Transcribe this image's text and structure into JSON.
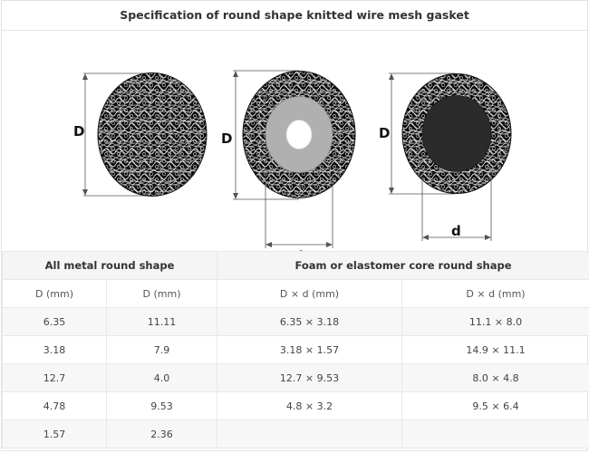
{
  "title": "Specification of round shape knitted wire mesh gasket",
  "figure": {
    "labels": {
      "gasket1_D": "D",
      "gasket2_D": "D",
      "gasket2_d": "d",
      "gasket3_D": "D",
      "gasket3_d": "d"
    },
    "colors": {
      "mesh": "#111111",
      "foam_core": "#b0b0b0",
      "elastomer_core": "#2b2b2b",
      "dimension_lines": "#444444"
    }
  },
  "table": {
    "groups": [
      "All metal round shape",
      "Foam or elastomer core round shape"
    ],
    "subheaders": [
      "D (mm)",
      "D (mm)",
      "D × d (mm)",
      "D × d (mm)"
    ],
    "rows": [
      [
        "6.35",
        "11.11",
        "6.35 × 3.18",
        "11.1 × 8.0"
      ],
      [
        "3.18",
        "7.9",
        "3.18 × 1.57",
        "14.9 × 11.1"
      ],
      [
        "12.7",
        "4.0",
        "12.7 × 9.53",
        "8.0 × 4.8"
      ],
      [
        "4.78",
        "9.53",
        "4.8 × 3.2",
        "9.5 × 6.4"
      ],
      [
        "1.57",
        "2.36",
        "",
        ""
      ]
    ]
  }
}
